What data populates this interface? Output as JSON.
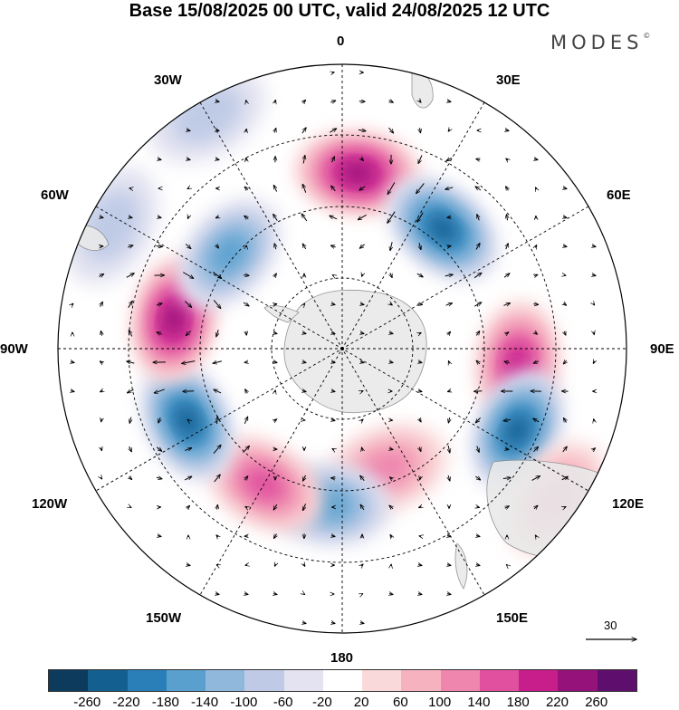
{
  "title": "Base 15/08/2025 00 UTC, valid 24/08/2025 12 UTC",
  "brand": "MODES",
  "brand_mark": "©",
  "longitude_labels": [
    "0",
    "30E",
    "60E",
    "90E",
    "120E",
    "150E",
    "180",
    "150W",
    "120W",
    "90W",
    "60W",
    "30W"
  ],
  "reference_vector": "30",
  "colorbar": {
    "ticks": [
      "-260",
      "-220",
      "-180",
      "-140",
      "-100",
      "-60",
      "-20",
      "20",
      "60",
      "100",
      "140",
      "180",
      "220",
      "260"
    ],
    "colors": [
      "#0d3b5e",
      "#135f8f",
      "#2a7fb8",
      "#5aa0cf",
      "#8fb8dc",
      "#bfcbe6",
      "#e3e3f1",
      "#ffffff",
      "#f9d9d9",
      "#f6b3bf",
      "#ee86ae",
      "#e0509f",
      "#c71e8c",
      "#96127b",
      "#5e0f6e"
    ]
  },
  "anomalies": [
    {
      "lon": 5,
      "r": 0.62,
      "value": 240
    },
    {
      "lon": 40,
      "r": 0.55,
      "value": -220
    },
    {
      "lon": 95,
      "r": 0.62,
      "value": 180
    },
    {
      "lon": 115,
      "r": 0.68,
      "value": -230
    },
    {
      "lon": 125,
      "r": 0.92,
      "value": 100
    },
    {
      "lon": 160,
      "r": 0.45,
      "value": 120
    },
    {
      "lon": -175,
      "r": 0.55,
      "value": -150
    },
    {
      "lon": -150,
      "r": 0.55,
      "value": 160
    },
    {
      "lon": -115,
      "r": 0.6,
      "value": -220
    },
    {
      "lon": -80,
      "r": 0.6,
      "value": 240
    },
    {
      "lon": -50,
      "r": 0.52,
      "value": -160
    },
    {
      "lon": -30,
      "r": 0.95,
      "value": -60
    },
    {
      "lon": -62,
      "r": 0.92,
      "value": -80
    }
  ]
}
